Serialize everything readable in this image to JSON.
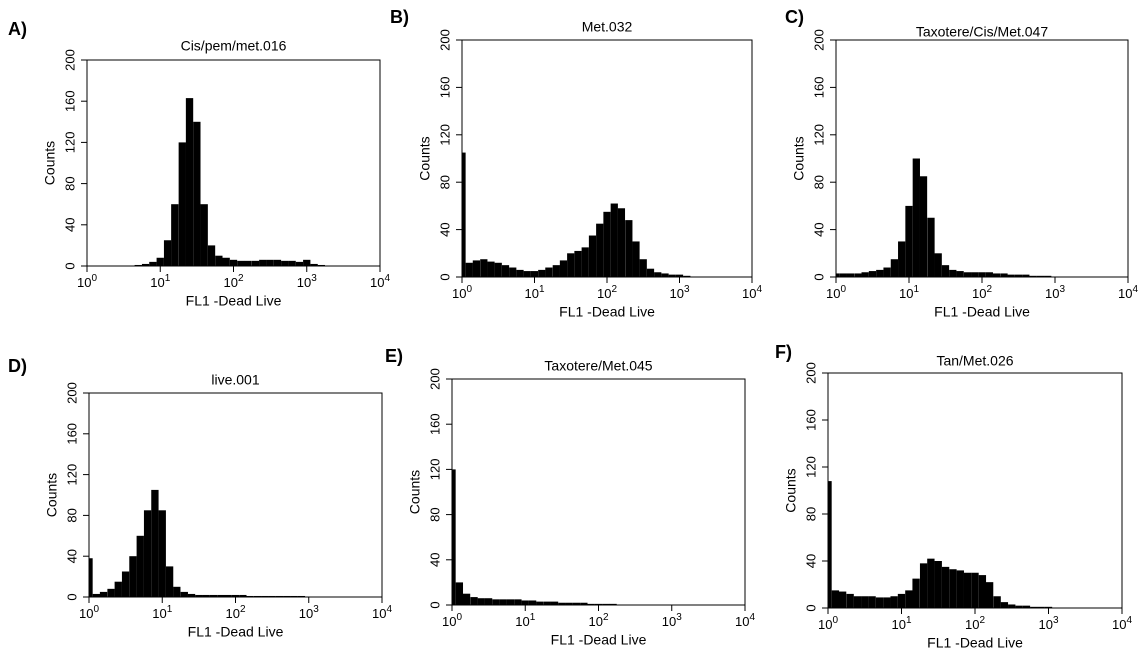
{
  "chart_data": [
    {
      "type": "bar",
      "panel": "A)",
      "title": "Cis/pem/met.016",
      "x_label": "FL1 -Dead Live",
      "y_label": "Counts",
      "color": "#000000",
      "xscale": "log",
      "xlim": [
        1,
        10000
      ],
      "xticks": [
        {
          "value": 1,
          "label": "10",
          "sup": "0"
        },
        {
          "value": 10,
          "label": "10",
          "sup": "1"
        },
        {
          "value": 100,
          "label": "10",
          "sup": "2"
        },
        {
          "value": 1000,
          "label": "10",
          "sup": "3"
        },
        {
          "value": 10000,
          "label": "10",
          "sup": "4"
        }
      ],
      "ylim": [
        0,
        200
      ],
      "yticks": [
        0,
        40,
        80,
        120,
        160,
        200
      ],
      "x": [
        1,
        1.26,
        1.58,
        2,
        2.51,
        3.16,
        3.98,
        5.01,
        6.31,
        7.94,
        10,
        12.6,
        15.8,
        20,
        25.1,
        31.6,
        39.8,
        50.1,
        63.1,
        79.4,
        100,
        126,
        158,
        200,
        251,
        316,
        398,
        501,
        631,
        794,
        1000,
        1260,
        1580,
        2000,
        2510,
        3160,
        3980,
        5010,
        6310,
        7940,
        10000
      ],
      "values": [
        0,
        0,
        0,
        0,
        0,
        0,
        0,
        1,
        2,
        4,
        8,
        25,
        60,
        120,
        163,
        140,
        60,
        20,
        10,
        8,
        6,
        5,
        5,
        5,
        6,
        6,
        6,
        5,
        5,
        4,
        6,
        2,
        1,
        0,
        0,
        0,
        0,
        0,
        0,
        0,
        0
      ]
    },
    {
      "type": "bar",
      "panel": "B)",
      "title": "Met.032",
      "x_label": "FL1 -Dead Live",
      "y_label": "Counts",
      "color": "#000000",
      "xscale": "log",
      "xlim": [
        1,
        10000
      ],
      "xticks": [
        {
          "value": 1,
          "label": "10",
          "sup": "0"
        },
        {
          "value": 10,
          "label": "10",
          "sup": "1"
        },
        {
          "value": 100,
          "label": "10",
          "sup": "2"
        },
        {
          "value": 1000,
          "label": "10",
          "sup": "3"
        },
        {
          "value": 10000,
          "label": "10",
          "sup": "4"
        }
      ],
      "ylim": [
        0,
        200
      ],
      "yticks": [
        0,
        40,
        80,
        120,
        160,
        200
      ],
      "x": [
        1,
        1.26,
        1.58,
        2,
        2.51,
        3.16,
        3.98,
        5.01,
        6.31,
        7.94,
        10,
        12.6,
        15.8,
        20,
        25.1,
        31.6,
        39.8,
        50.1,
        63.1,
        79.4,
        100,
        126,
        158,
        200,
        251,
        316,
        398,
        501,
        631,
        794,
        1000,
        1260,
        1580,
        2000,
        2510,
        3160,
        3980,
        5010,
        6310,
        7940,
        10000
      ],
      "values": [
        105,
        12,
        14,
        15,
        13,
        12,
        10,
        8,
        6,
        5,
        5,
        6,
        8,
        10,
        14,
        20,
        22,
        25,
        35,
        45,
        55,
        62,
        58,
        48,
        30,
        15,
        7,
        4,
        3,
        2,
        2,
        1,
        0,
        0,
        0,
        0,
        0,
        0,
        0,
        0,
        0
      ]
    },
    {
      "type": "bar",
      "panel": "C)",
      "title": "Taxotere/Cis/Met.047",
      "x_label": "FL1 -Dead Live",
      "y_label": "Counts",
      "color": "#000000",
      "xscale": "log",
      "xlim": [
        1,
        10000
      ],
      "xticks": [
        {
          "value": 1,
          "label": "10",
          "sup": "0"
        },
        {
          "value": 10,
          "label": "10",
          "sup": "1"
        },
        {
          "value": 100,
          "label": "10",
          "sup": "2"
        },
        {
          "value": 1000,
          "label": "10",
          "sup": "3"
        },
        {
          "value": 10000,
          "label": "10",
          "sup": "4"
        }
      ],
      "ylim": [
        0,
        200
      ],
      "yticks": [
        0,
        40,
        80,
        120,
        160,
        200
      ],
      "x": [
        1,
        1.26,
        1.58,
        2,
        2.51,
        3.16,
        3.98,
        5.01,
        6.31,
        7.94,
        10,
        12.6,
        15.8,
        20,
        25.1,
        31.6,
        39.8,
        50.1,
        63.1,
        79.4,
        100,
        126,
        158,
        200,
        251,
        316,
        398,
        501,
        631,
        794,
        1000,
        1260,
        1580,
        2000,
        2510,
        3160,
        3980,
        5010,
        6310,
        7940,
        10000
      ],
      "values": [
        3,
        3,
        3,
        3,
        4,
        5,
        6,
        8,
        15,
        30,
        60,
        100,
        85,
        50,
        20,
        10,
        6,
        5,
        4,
        4,
        4,
        4,
        3,
        3,
        2,
        2,
        2,
        1,
        1,
        1,
        0,
        0,
        0,
        0,
        0,
        0,
        0,
        0,
        0,
        0,
        0
      ]
    },
    {
      "type": "bar",
      "panel": "D)",
      "title": "live.001",
      "x_label": "FL1 -Dead Live",
      "y_label": "Counts",
      "color": "#000000",
      "xscale": "log",
      "xlim": [
        1,
        10000
      ],
      "xticks": [
        {
          "value": 1,
          "label": "10",
          "sup": "0"
        },
        {
          "value": 10,
          "label": "10",
          "sup": "1"
        },
        {
          "value": 100,
          "label": "10",
          "sup": "2"
        },
        {
          "value": 1000,
          "label": "10",
          "sup": "3"
        },
        {
          "value": 10000,
          "label": "10",
          "sup": "4"
        }
      ],
      "ylim": [
        0,
        200
      ],
      "yticks": [
        0,
        40,
        80,
        120,
        160,
        200
      ],
      "x": [
        1,
        1.26,
        1.58,
        2,
        2.51,
        3.16,
        3.98,
        5.01,
        6.31,
        7.94,
        10,
        12.6,
        15.8,
        20,
        25.1,
        31.6,
        39.8,
        50.1,
        63.1,
        79.4,
        100,
        126,
        158,
        200,
        251,
        316,
        398,
        501,
        631,
        794,
        1000,
        1260,
        1580,
        2000,
        2510,
        3160,
        3980,
        5010,
        6310,
        7940,
        10000
      ],
      "values": [
        38,
        3,
        5,
        8,
        15,
        25,
        40,
        60,
        85,
        105,
        85,
        30,
        10,
        5,
        3,
        2,
        2,
        2,
        2,
        2,
        2,
        2,
        1,
        1,
        1,
        1,
        1,
        1,
        1,
        1,
        0,
        0,
        0,
        0,
        0,
        0,
        0,
        0,
        0,
        0,
        0
      ]
    },
    {
      "type": "bar",
      "panel": "E)",
      "title": "Taxotere/Met.045",
      "x_label": "FL1 -Dead Live",
      "y_label": "Counts",
      "color": "#000000",
      "xscale": "log",
      "xlim": [
        1,
        10000
      ],
      "xticks": [
        {
          "value": 1,
          "label": "10",
          "sup": "0"
        },
        {
          "value": 10,
          "label": "10",
          "sup": "1"
        },
        {
          "value": 100,
          "label": "10",
          "sup": "2"
        },
        {
          "value": 1000,
          "label": "10",
          "sup": "3"
        },
        {
          "value": 10000,
          "label": "10",
          "sup": "4"
        }
      ],
      "ylim": [
        0,
        200
      ],
      "yticks": [
        0,
        40,
        80,
        120,
        160,
        200
      ],
      "x": [
        1,
        1.26,
        1.58,
        2,
        2.51,
        3.16,
        3.98,
        5.01,
        6.31,
        7.94,
        10,
        12.6,
        15.8,
        20,
        25.1,
        31.6,
        39.8,
        50.1,
        63.1,
        79.4,
        100,
        126,
        158,
        200,
        251,
        316,
        398,
        501,
        631,
        794,
        1000,
        1260,
        1580,
        2000,
        2510,
        3160,
        3980,
        5010,
        6310,
        7940,
        10000
      ],
      "values": [
        120,
        20,
        10,
        7,
        6,
        6,
        5,
        5,
        5,
        5,
        4,
        4,
        3,
        3,
        3,
        2,
        2,
        2,
        2,
        1,
        1,
        1,
        1,
        0,
        0,
        0,
        0,
        0,
        0,
        0,
        0,
        0,
        0,
        0,
        0,
        0,
        0,
        0,
        0,
        0,
        0
      ]
    },
    {
      "type": "bar",
      "panel": "F)",
      "title": "Tan/Met.026",
      "x_label": "FL1 -Dead Live",
      "y_label": "Counts",
      "color": "#000000",
      "xscale": "log",
      "xlim": [
        1,
        10000
      ],
      "xticks": [
        {
          "value": 1,
          "label": "10",
          "sup": "0"
        },
        {
          "value": 10,
          "label": "10",
          "sup": "1"
        },
        {
          "value": 100,
          "label": "10",
          "sup": "2"
        },
        {
          "value": 1000,
          "label": "10",
          "sup": "3"
        },
        {
          "value": 10000,
          "label": "10",
          "sup": "4"
        }
      ],
      "ylim": [
        0,
        200
      ],
      "yticks": [
        0,
        40,
        80,
        120,
        160,
        200
      ],
      "x": [
        1,
        1.26,
        1.58,
        2,
        2.51,
        3.16,
        3.98,
        5.01,
        6.31,
        7.94,
        10,
        12.6,
        15.8,
        20,
        25.1,
        31.6,
        39.8,
        50.1,
        63.1,
        79.4,
        100,
        126,
        158,
        200,
        251,
        316,
        398,
        501,
        631,
        794,
        1000,
        1260,
        1580,
        2000,
        2510,
        3160,
        3980,
        5010,
        6310,
        7940,
        10000
      ],
      "values": [
        108,
        15,
        14,
        12,
        10,
        10,
        10,
        9,
        9,
        10,
        12,
        15,
        25,
        38,
        42,
        40,
        35,
        33,
        32,
        30,
        30,
        28,
        22,
        10,
        5,
        3,
        2,
        2,
        1,
        1,
        1,
        0,
        0,
        0,
        0,
        0,
        0,
        0,
        0,
        0,
        0
      ]
    }
  ]
}
